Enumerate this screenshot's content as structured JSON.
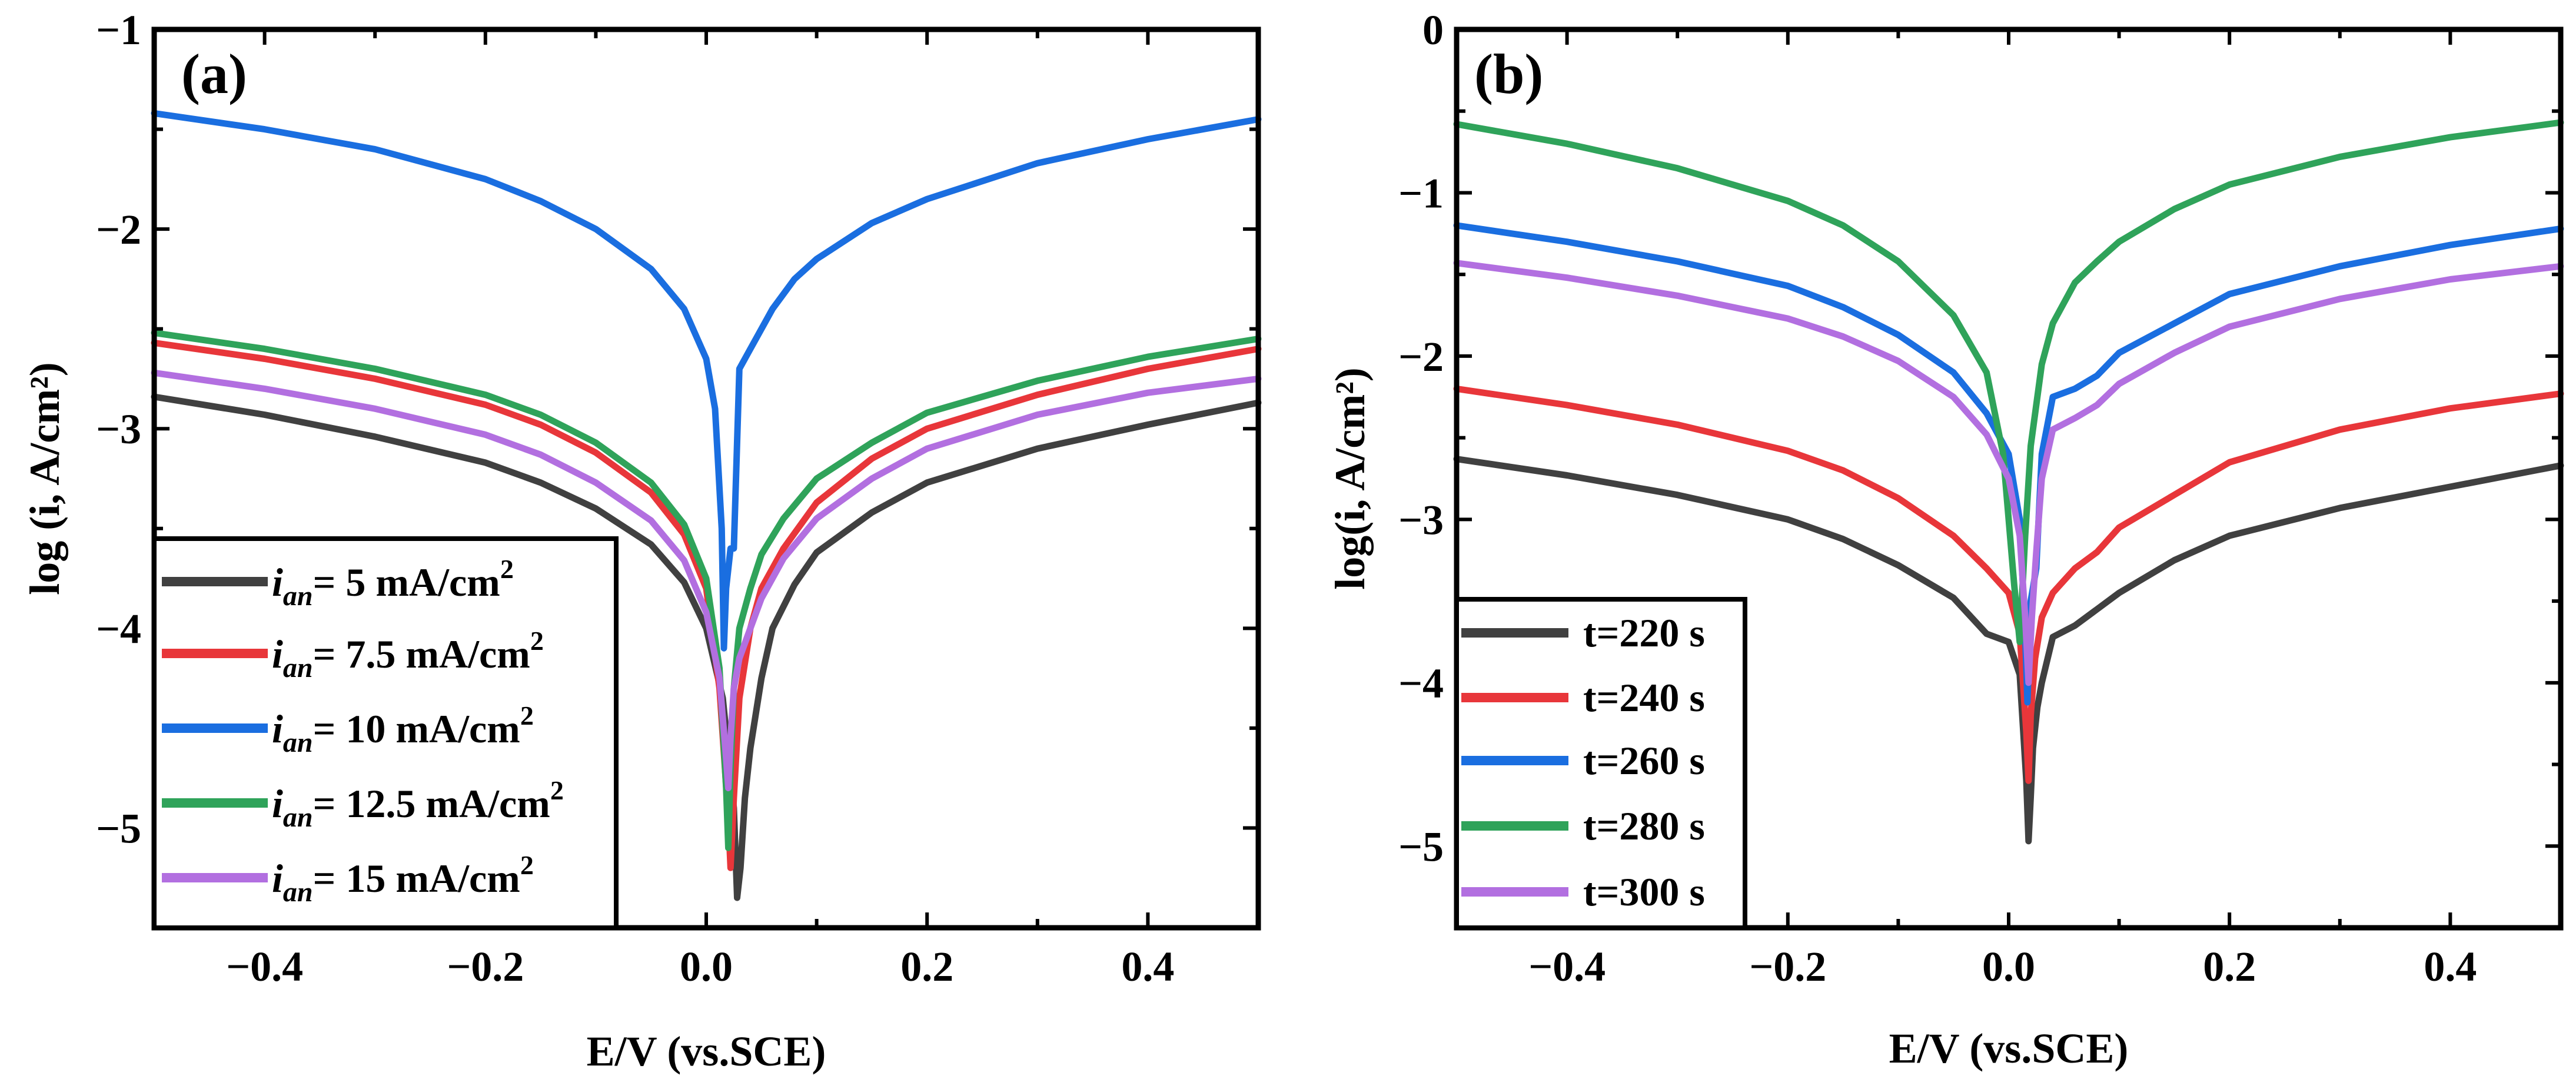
{
  "colors": {
    "black": "#404040",
    "red": "#e8363a",
    "blue": "#1a6ee0",
    "green": "#2fa35a",
    "purple": "#b26fe0",
    "axis": "#000000"
  },
  "chart_data": [
    {
      "type": "line",
      "panel_label": "(a)",
      "xlabel": "E/V (vs.SCE)",
      "ylabel": "log (i, A/cm²)",
      "xlim": [
        -0.5,
        0.5
      ],
      "ylim": [
        -5.5,
        -1
      ],
      "xticks": [
        -0.4,
        -0.2,
        0.0,
        0.2,
        0.4
      ],
      "xtick_labels": [
        "−0.4",
        "−0.2",
        "0.0",
        "0.2",
        "0.4"
      ],
      "yticks": [
        -5,
        -4,
        -3,
        -2,
        -1
      ],
      "ytick_labels": [
        "−5",
        "−4",
        "−3",
        "−2",
        "−1"
      ],
      "grid": false,
      "legend_position": "bottom-left",
      "series": [
        {
          "name_prefix": "i",
          "name_sub": "an",
          "name_value": "= 5 mA/cm",
          "name_sup": "2",
          "color": "black",
          "x": [
            -0.5,
            -0.4,
            -0.3,
            -0.2,
            -0.15,
            -0.1,
            -0.05,
            -0.02,
            0.0,
            0.015,
            0.025,
            0.028,
            0.031,
            0.035,
            0.04,
            0.05,
            0.06,
            0.08,
            0.1,
            0.15,
            0.2,
            0.3,
            0.4,
            0.5
          ],
          "y": [
            -2.84,
            -2.93,
            -3.04,
            -3.17,
            -3.27,
            -3.4,
            -3.58,
            -3.77,
            -4.0,
            -4.35,
            -4.9,
            -5.35,
            -5.2,
            -4.85,
            -4.6,
            -4.25,
            -4.0,
            -3.78,
            -3.62,
            -3.42,
            -3.27,
            -3.1,
            -2.98,
            -2.87
          ]
        },
        {
          "name_prefix": "i",
          "name_sub": "an",
          "name_value": "= 7.5 mA/cm",
          "name_sup": "2",
          "color": "red",
          "x": [
            -0.5,
            -0.4,
            -0.3,
            -0.2,
            -0.15,
            -0.1,
            -0.05,
            -0.02,
            0.0,
            0.012,
            0.02,
            0.022,
            0.025,
            0.03,
            0.04,
            0.05,
            0.07,
            0.1,
            0.15,
            0.2,
            0.3,
            0.4,
            0.5
          ],
          "y": [
            -2.57,
            -2.65,
            -2.75,
            -2.88,
            -2.98,
            -3.12,
            -3.32,
            -3.53,
            -3.8,
            -4.3,
            -4.95,
            -5.2,
            -4.85,
            -4.35,
            -4.0,
            -3.8,
            -3.6,
            -3.37,
            -3.15,
            -3.0,
            -2.83,
            -2.7,
            -2.6
          ]
        },
        {
          "name_prefix": "i",
          "name_sub": "an",
          "name_value": "= 10 mA/cm",
          "name_sup": "2",
          "color": "blue",
          "x": [
            -0.5,
            -0.4,
            -0.3,
            -0.2,
            -0.15,
            -0.1,
            -0.05,
            -0.02,
            0.0,
            0.008,
            0.014,
            0.016,
            0.018,
            0.022,
            0.025,
            0.03,
            0.04,
            0.06,
            0.08,
            0.1,
            0.15,
            0.2,
            0.3,
            0.4,
            0.5
          ],
          "y": [
            -1.42,
            -1.5,
            -1.6,
            -1.75,
            -1.86,
            -2.0,
            -2.2,
            -2.4,
            -2.65,
            -2.9,
            -3.5,
            -4.1,
            -3.8,
            -3.6,
            -3.6,
            -2.7,
            -2.6,
            -2.4,
            -2.25,
            -2.15,
            -1.97,
            -1.85,
            -1.67,
            -1.55,
            -1.45
          ]
        },
        {
          "name_prefix": "i",
          "name_sub": "an",
          "name_value": "= 12.5 mA/cm",
          "name_sup": "2",
          "color": "green",
          "x": [
            -0.5,
            -0.4,
            -0.3,
            -0.2,
            -0.15,
            -0.1,
            -0.05,
            -0.02,
            0.0,
            0.012,
            0.018,
            0.02,
            0.022,
            0.025,
            0.03,
            0.04,
            0.05,
            0.07,
            0.1,
            0.15,
            0.2,
            0.3,
            0.4,
            0.5
          ],
          "y": [
            -2.52,
            -2.6,
            -2.7,
            -2.83,
            -2.93,
            -3.07,
            -3.27,
            -3.48,
            -3.75,
            -4.2,
            -4.8,
            -5.1,
            -4.7,
            -4.3,
            -4.0,
            -3.8,
            -3.63,
            -3.45,
            -3.25,
            -3.07,
            -2.92,
            -2.76,
            -2.64,
            -2.55
          ]
        },
        {
          "name_prefix": "i",
          "name_sub": "an",
          "name_value": "= 15 mA/cm",
          "name_sup": "2",
          "color": "purple",
          "x": [
            -0.5,
            -0.4,
            -0.3,
            -0.2,
            -0.15,
            -0.1,
            -0.05,
            -0.02,
            0.0,
            0.012,
            0.018,
            0.02,
            0.022,
            0.025,
            0.03,
            0.04,
            0.05,
            0.07,
            0.1,
            0.15,
            0.2,
            0.3,
            0.4,
            0.5
          ],
          "y": [
            -2.72,
            -2.8,
            -2.9,
            -3.03,
            -3.13,
            -3.27,
            -3.46,
            -3.66,
            -3.92,
            -4.25,
            -4.65,
            -4.8,
            -4.55,
            -4.3,
            -4.15,
            -4.0,
            -3.85,
            -3.65,
            -3.45,
            -3.25,
            -3.1,
            -2.93,
            -2.82,
            -2.75
          ]
        }
      ]
    },
    {
      "type": "line",
      "panel_label": "(b)",
      "xlabel": "E/V (vs.SCE)",
      "ylabel": "log(i, A/cm²)",
      "xlim": [
        -0.5,
        0.5
      ],
      "ylim": [
        -5.5,
        0
      ],
      "xticks": [
        -0.4,
        -0.2,
        0.0,
        0.2,
        0.4
      ],
      "xtick_labels": [
        "−0.4",
        "−0.2",
        "0.0",
        "0.2",
        "0.4"
      ],
      "yticks": [
        -5,
        -4,
        -3,
        -2,
        -1,
        0
      ],
      "ytick_labels": [
        "−5",
        "−4",
        "−3",
        "−2",
        "−1",
        "0"
      ],
      "grid": false,
      "legend_position": "bottom-left",
      "series": [
        {
          "name": "t=220 s",
          "color": "black",
          "x": [
            -0.5,
            -0.4,
            -0.3,
            -0.2,
            -0.15,
            -0.1,
            -0.05,
            -0.02,
            0.0,
            0.01,
            0.016,
            0.018,
            0.02,
            0.022,
            0.026,
            0.03,
            0.04,
            0.06,
            0.08,
            0.1,
            0.15,
            0.2,
            0.3,
            0.4,
            0.5
          ],
          "y": [
            -2.63,
            -2.73,
            -2.85,
            -3.0,
            -3.12,
            -3.28,
            -3.48,
            -3.7,
            -3.75,
            -3.95,
            -4.6,
            -4.97,
            -4.7,
            -4.4,
            -4.15,
            -4.0,
            -3.72,
            -3.65,
            -3.55,
            -3.45,
            -3.25,
            -3.1,
            -2.93,
            -2.8,
            -2.67
          ]
        },
        {
          "name": "t=240 s",
          "color": "red",
          "x": [
            -0.5,
            -0.4,
            -0.3,
            -0.2,
            -0.15,
            -0.1,
            -0.05,
            -0.02,
            0.0,
            0.01,
            0.016,
            0.018,
            0.02,
            0.024,
            0.03,
            0.04,
            0.06,
            0.08,
            0.1,
            0.15,
            0.2,
            0.3,
            0.4,
            0.5
          ],
          "y": [
            -2.2,
            -2.3,
            -2.42,
            -2.58,
            -2.7,
            -2.87,
            -3.1,
            -3.3,
            -3.45,
            -3.7,
            -4.3,
            -4.6,
            -4.2,
            -3.85,
            -3.6,
            -3.45,
            -3.3,
            -3.2,
            -3.05,
            -2.85,
            -2.65,
            -2.45,
            -2.32,
            -2.23
          ]
        },
        {
          "name": "t=260 s",
          "color": "blue",
          "x": [
            -0.5,
            -0.4,
            -0.3,
            -0.2,
            -0.15,
            -0.1,
            -0.05,
            -0.02,
            0.0,
            0.01,
            0.015,
            0.017,
            0.02,
            0.025,
            0.03,
            0.04,
            0.06,
            0.08,
            0.1,
            0.15,
            0.2,
            0.3,
            0.4,
            0.5
          ],
          "y": [
            -1.2,
            -1.3,
            -1.42,
            -1.57,
            -1.7,
            -1.87,
            -2.1,
            -2.35,
            -2.6,
            -3.0,
            -3.7,
            -4.12,
            -3.5,
            -3.3,
            -2.6,
            -2.25,
            -2.2,
            -2.12,
            -1.98,
            -1.8,
            -1.62,
            -1.45,
            -1.32,
            -1.22
          ]
        },
        {
          "name": "t=280 s",
          "color": "green",
          "x": [
            -0.5,
            -0.4,
            -0.3,
            -0.2,
            -0.15,
            -0.1,
            -0.05,
            -0.02,
            -0.005,
            0.005,
            0.01,
            0.015,
            0.02,
            0.03,
            0.04,
            0.06,
            0.08,
            0.1,
            0.15,
            0.2,
            0.3,
            0.4,
            0.5
          ],
          "y": [
            -0.58,
            -0.7,
            -0.85,
            -1.05,
            -1.2,
            -1.42,
            -1.75,
            -2.1,
            -2.6,
            -3.4,
            -3.75,
            -3.1,
            -2.55,
            -2.05,
            -1.8,
            -1.55,
            -1.42,
            -1.3,
            -1.1,
            -0.95,
            -0.78,
            -0.66,
            -0.57
          ]
        },
        {
          "name": "t=300 s",
          "color": "purple",
          "x": [
            -0.5,
            -0.4,
            -0.3,
            -0.2,
            -0.15,
            -0.1,
            -0.05,
            -0.02,
            0.0,
            0.01,
            0.015,
            0.018,
            0.021,
            0.025,
            0.03,
            0.04,
            0.06,
            0.08,
            0.1,
            0.15,
            0.2,
            0.3,
            0.4,
            0.5
          ],
          "y": [
            -1.43,
            -1.52,
            -1.63,
            -1.77,
            -1.88,
            -2.03,
            -2.25,
            -2.48,
            -2.75,
            -3.1,
            -3.6,
            -4.0,
            -3.6,
            -3.2,
            -2.75,
            -2.45,
            -2.38,
            -2.3,
            -2.17,
            -1.98,
            -1.82,
            -1.65,
            -1.53,
            -1.45
          ]
        }
      ]
    }
  ]
}
